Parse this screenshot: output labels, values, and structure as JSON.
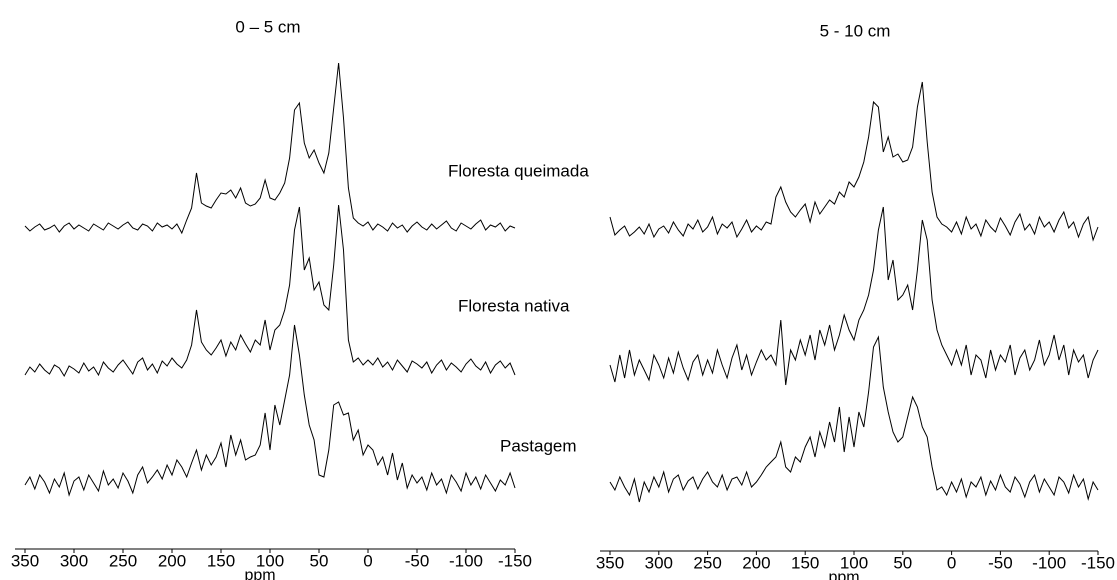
{
  "chart_data": [
    {
      "type": "line",
      "title": "0 – 5 cm",
      "xlabel": "ppm",
      "color": "#000000",
      "xlim": [
        350,
        -150
      ],
      "xticks": [
        350,
        300,
        250,
        200,
        150,
        100,
        50,
        0,
        -50,
        -100,
        -150
      ],
      "x": [
        350,
        345,
        340,
        335,
        330,
        325,
        320,
        315,
        310,
        305,
        300,
        295,
        290,
        285,
        280,
        275,
        270,
        265,
        260,
        255,
        250,
        245,
        240,
        235,
        230,
        225,
        220,
        215,
        210,
        205,
        200,
        195,
        190,
        185,
        180,
        175,
        170,
        165,
        160,
        155,
        150,
        145,
        140,
        135,
        130,
        125,
        120,
        115,
        110,
        105,
        100,
        95,
        90,
        85,
        80,
        75,
        70,
        65,
        60,
        55,
        50,
        45,
        40,
        35,
        30,
        25,
        20,
        15,
        10,
        5,
        0,
        -5,
        -10,
        -15,
        -20,
        -25,
        -30,
        -35,
        -40,
        -45,
        -50,
        -55,
        -60,
        -65,
        -70,
        -75,
        -80,
        -85,
        -90,
        -95,
        -100,
        -105,
        -110,
        -115,
        -120,
        -125,
        -130,
        -135,
        -140,
        -145,
        -150
      ],
      "series": [
        {
          "name": "Floresta queimada",
          "values": [
            2,
            -3,
            1,
            4,
            -2,
            0,
            3,
            -4,
            2,
            5,
            -1,
            3,
            0,
            -3,
            4,
            1,
            -2,
            5,
            2,
            -1,
            3,
            6,
            0,
            -2,
            4,
            2,
            -3,
            5,
            1,
            3,
            -1,
            4,
            -5,
            8,
            20,
            55,
            25,
            22,
            20,
            28,
            35,
            34,
            38,
            30,
            40,
            25,
            22,
            24,
            30,
            48,
            30,
            28,
            35,
            45,
            70,
            118,
            125,
            85,
            70,
            78,
            65,
            55,
            75,
            120,
            165,
            110,
            40,
            10,
            5,
            2,
            6,
            -2,
            4,
            1,
            -3,
            5,
            0,
            3,
            -4,
            2,
            6,
            1,
            -2,
            4,
            -1,
            3,
            7,
            0,
            -3,
            5,
            2,
            -1,
            4,
            8,
            -2,
            3,
            1,
            5,
            -3,
            2,
            0
          ]
        },
        {
          "name": "Floresta nativa",
          "values": [
            -5,
            3,
            -2,
            6,
            0,
            -4,
            5,
            2,
            -6,
            4,
            1,
            -3,
            7,
            -1,
            3,
            -5,
            8,
            2,
            -2,
            5,
            10,
            3,
            -4,
            8,
            12,
            0,
            6,
            -3,
            9,
            4,
            12,
            6,
            2,
            10,
            25,
            60,
            28,
            20,
            15,
            22,
            30,
            14,
            28,
            20,
            35,
            26,
            18,
            30,
            25,
            50,
            20,
            40,
            45,
            60,
            85,
            140,
            163,
            100,
            112,
            80,
            88,
            65,
            60,
            105,
            165,
            120,
            30,
            8,
            12,
            5,
            10,
            5,
            12,
            3,
            8,
            0,
            10,
            4,
            -2,
            9,
            6,
            2,
            8,
            -3,
            5,
            10,
            0,
            7,
            3,
            -2,
            6,
            11,
            4,
            0,
            8,
            -3,
            5,
            9,
            2,
            7,
            -5
          ]
        },
        {
          "name": "Pastagem",
          "values": [
            0,
            8,
            -4,
            10,
            3,
            -8,
            6,
            -2,
            12,
            -10,
            4,
            8,
            -5,
            10,
            2,
            -6,
            14,
            0,
            6,
            -3,
            12,
            4,
            -8,
            10,
            18,
            2,
            8,
            15,
            6,
            20,
            10,
            25,
            18,
            8,
            22,
            35,
            15,
            30,
            20,
            28,
            42,
            18,
            50,
            30,
            45,
            25,
            28,
            30,
            40,
            72,
            35,
            80,
            60,
            85,
            110,
            160,
            130,
            90,
            60,
            45,
            10,
            8,
            35,
            80,
            83,
            70,
            72,
            45,
            55,
            30,
            40,
            35,
            20,
            28,
            10,
            32,
            5,
            22,
            -3,
            10,
            2,
            8,
            -5,
            12,
            0,
            6,
            -8,
            10,
            3,
            -6,
            12,
            0,
            8,
            -4,
            10,
            2,
            -6,
            5,
            0,
            12,
            -3
          ]
        }
      ]
    },
    {
      "type": "line",
      "title": "5 - 10 cm",
      "xlabel": "ppm",
      "color": "#000000",
      "xlim": [
        350,
        -150
      ],
      "xticks": [
        350,
        300,
        250,
        200,
        150,
        100,
        50,
        0,
        -50,
        -100,
        -150
      ],
      "x": [
        350,
        345,
        340,
        335,
        330,
        325,
        320,
        315,
        310,
        305,
        300,
        295,
        290,
        285,
        280,
        275,
        270,
        265,
        260,
        255,
        250,
        245,
        240,
        235,
        230,
        225,
        220,
        215,
        210,
        205,
        200,
        195,
        190,
        185,
        180,
        175,
        170,
        165,
        160,
        155,
        150,
        145,
        140,
        135,
        130,
        125,
        120,
        115,
        110,
        105,
        100,
        95,
        90,
        85,
        80,
        75,
        70,
        65,
        60,
        55,
        50,
        45,
        40,
        35,
        30,
        25,
        20,
        15,
        10,
        5,
        0,
        -5,
        -10,
        -15,
        -20,
        -25,
        -30,
        -35,
        -40,
        -45,
        -50,
        -55,
        -60,
        -65,
        -70,
        -75,
        -80,
        -85,
        -90,
        -95,
        -100,
        -105,
        -110,
        -115,
        -120,
        -125,
        -130,
        -135,
        -140,
        -145,
        -150
      ],
      "series": [
        {
          "values": [
            15,
            -3,
            2,
            6,
            -4,
            0,
            5,
            -2,
            8,
            -5,
            3,
            6,
            -1,
            10,
            2,
            -4,
            8,
            3,
            12,
            0,
            5,
            15,
            -2,
            8,
            4,
            10,
            -5,
            3,
            12,
            0,
            6,
            2,
            10,
            8,
            35,
            45,
            30,
            20,
            15,
            22,
            28,
            10,
            30,
            18,
            25,
            32,
            28,
            40,
            35,
            50,
            45,
            55,
            70,
            95,
            130,
            125,
            80,
            95,
            75,
            78,
            70,
            72,
            85,
            125,
            150,
            90,
            40,
            15,
            8,
            5,
            0,
            10,
            -2,
            15,
            3,
            8,
            -4,
            12,
            5,
            0,
            14,
            6,
            -3,
            10,
            18,
            2,
            8,
            -2,
            15,
            5,
            10,
            0,
            12,
            20,
            4,
            10,
            -5,
            8,
            15,
            -8,
            5
          ]
        },
        {
          "values": [
            5,
            -12,
            15,
            -8,
            20,
            -5,
            10,
            0,
            -10,
            15,
            5,
            -8,
            12,
            -3,
            18,
            2,
            -10,
            8,
            15,
            -5,
            10,
            -3,
            20,
            5,
            -8,
            12,
            25,
            0,
            15,
            -5,
            8,
            20,
            10,
            15,
            5,
            50,
            -15,
            20,
            10,
            30,
            15,
            35,
            10,
            40,
            25,
            45,
            20,
            35,
            55,
            40,
            30,
            50,
            60,
            75,
            100,
            140,
            163,
            90,
            110,
            70,
            75,
            85,
            60,
            100,
            150,
            130,
            70,
            40,
            25,
            15,
            5,
            20,
            5,
            25,
            -5,
            15,
            10,
            -8,
            20,
            0,
            15,
            8,
            25,
            -5,
            12,
            20,
            0,
            10,
            30,
            5,
            15,
            35,
            10,
            25,
            -5,
            20,
            8,
            15,
            -8,
            10,
            20
          ]
        },
        {
          "values": [
            5,
            -3,
            10,
            0,
            -8,
            8,
            -15,
            5,
            -5,
            10,
            0,
            15,
            -5,
            8,
            12,
            -3,
            6,
            10,
            -2,
            8,
            15,
            5,
            0,
            12,
            -3,
            8,
            10,
            2,
            15,
            0,
            5,
            12,
            20,
            25,
            30,
            45,
            20,
            15,
            30,
            25,
            40,
            50,
            30,
            55,
            40,
            65,
            45,
            80,
            35,
            70,
            40,
            75,
            60,
            95,
            140,
            150,
            100,
            75,
            55,
            45,
            50,
            70,
            90,
            80,
            60,
            50,
            20,
            -3,
            0,
            -8,
            5,
            -5,
            8,
            -10,
            5,
            0,
            10,
            -8,
            6,
            -3,
            12,
            0,
            -5,
            10,
            3,
            -10,
            5,
            12,
            -5,
            8,
            0,
            -8,
            10,
            5,
            -6,
            12,
            0,
            8,
            -12,
            5,
            -3
          ]
        }
      ]
    }
  ]
}
